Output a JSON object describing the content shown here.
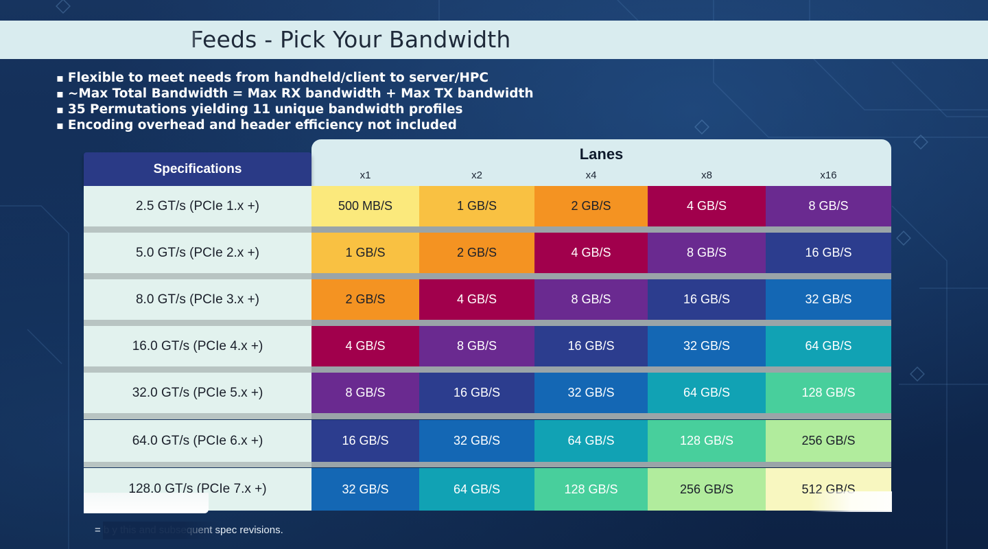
{
  "slide": {
    "title": "Feeds - Pick Your Bandwidth",
    "bullets": [
      "Flexible to meet needs from handheld/client to server/HPC",
      "~Max Total Bandwidth = Max RX bandwidth + Max TX bandwidth",
      "35 Permutations yielding 11 unique bandwidth profiles",
      "Encoding overhead and header efficiency not included"
    ],
    "footnote": "= b                   y this and subsequent spec revisions."
  },
  "table": {
    "spec_header": "Specifications",
    "lanes_header": "Lanes",
    "lane_labels": [
      "x1",
      "x2",
      "x4",
      "x8",
      "x16"
    ],
    "rows": [
      {
        "spec": "2.5 GT/s (PCIe 1.x +)",
        "cells": [
          "500 MB/S",
          "1 GB/S",
          "2 GB/S",
          "4 GB/S",
          "8 GB/S"
        ]
      },
      {
        "spec": "5.0 GT/s (PCIe 2.x +)",
        "cells": [
          "1 GB/S",
          "2 GB/S",
          "4 GB/S",
          "8 GB/S",
          "16 GB/S"
        ]
      },
      {
        "spec": "8.0 GT/s (PCIe 3.x +)",
        "cells": [
          "2 GB/S",
          "4 GB/S",
          "8 GB/S",
          "16 GB/S",
          "32 GB/S"
        ]
      },
      {
        "spec": "16.0 GT/s (PCIe 4.x +)",
        "cells": [
          "4 GB/S",
          "8 GB/S",
          "16 GB/S",
          "32 GB/S",
          "64 GB/S"
        ]
      },
      {
        "spec": "32.0 GT/s (PCIe 5.x +)",
        "cells": [
          "8 GB/S",
          "16 GB/S",
          "32 GB/S",
          "64 GB/S",
          "128 GB/S"
        ]
      },
      {
        "spec": "64.0 GT/s (PCIe 6.x +)",
        "cells": [
          "16 GB/S",
          "32 GB/S",
          "64 GB/S",
          "128 GB/S",
          "256 GB/S"
        ]
      },
      {
        "spec": "128.0 GT/s (PCIe 7.x +)",
        "cells": [
          "32 GB/S",
          "64 GB/S",
          "128 GB/S",
          "256 GB/S",
          "512 GB/S"
        ]
      }
    ]
  },
  "colors": {
    "500 MB/S": "#fbe97c",
    "1 GB/S": "#f9c142",
    "2 GB/S": "#f49322",
    "4 GB/S": "#a1004c",
    "8 GB/S": "#6a2a90",
    "16 GB/S": "#2c3d8e",
    "32 GB/S": "#1467b4",
    "64 GB/S": "#11a2b4",
    "128 GB/S": "#48cf9c",
    "256 GB/S": "#b1ec9d",
    "512 GB/S": "#f8f7c0",
    "title_bar": "#d9ecef",
    "spec_header": "#2a3a86",
    "background": "#0f2448"
  }
}
